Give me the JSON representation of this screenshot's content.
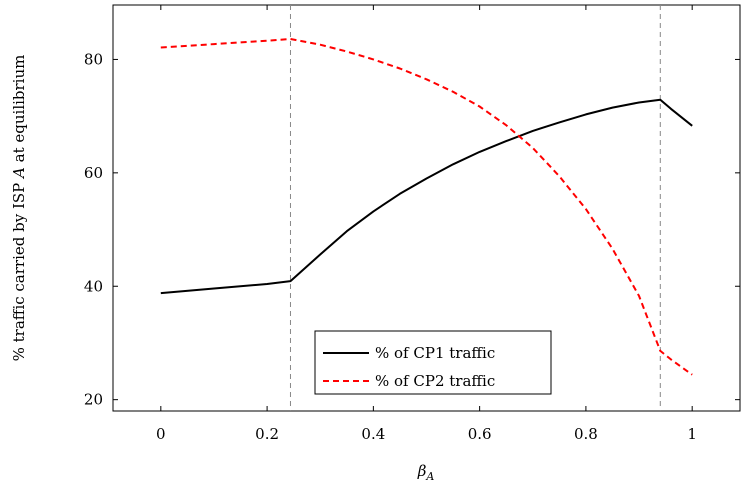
{
  "chart_data": {
    "type": "line",
    "xlabel": "β",
    "xlabel_subscript": "A",
    "ylabel_prefix": "% traffic carried by ISP ",
    "ylabel_italic": "A",
    "ylabel_suffix": " at equilibrium",
    "xlim": [
      -0.09,
      1.09
    ],
    "ylim": [
      18,
      89.6
    ],
    "x_ticks": [
      0,
      0.2,
      0.4,
      0.6,
      0.8,
      1
    ],
    "x_tick_labels": [
      "0",
      "0.2",
      "0.4",
      "0.6",
      "0.8",
      "1"
    ],
    "y_ticks": [
      20,
      40,
      60,
      80
    ],
    "y_tick_labels": [
      "20",
      "40",
      "60",
      "80"
    ],
    "vlines": [
      0.244,
      0.94
    ],
    "legend_position": "lower-right",
    "series": [
      {
        "name": "% of CP1 traffic",
        "color": "#000000",
        "dash": "solid",
        "points": [
          [
            0,
            38.8
          ],
          [
            0.1,
            39.6
          ],
          [
            0.2,
            40.4
          ],
          [
            0.244,
            40.9
          ],
          [
            0.3,
            45.6
          ],
          [
            0.35,
            49.7
          ],
          [
            0.4,
            53.2
          ],
          [
            0.45,
            56.3
          ],
          [
            0.5,
            59.0
          ],
          [
            0.55,
            61.5
          ],
          [
            0.6,
            63.7
          ],
          [
            0.65,
            65.6
          ],
          [
            0.7,
            67.4
          ],
          [
            0.75,
            68.9
          ],
          [
            0.8,
            70.3
          ],
          [
            0.85,
            71.5
          ],
          [
            0.9,
            72.4
          ],
          [
            0.94,
            72.9
          ],
          [
            0.96,
            71.3
          ],
          [
            1,
            68.3
          ]
        ]
      },
      {
        "name": "% of CP2 traffic",
        "color": "#ff0000",
        "dash": "dashed",
        "points": [
          [
            0,
            82.1
          ],
          [
            0.1,
            82.7
          ],
          [
            0.2,
            83.3
          ],
          [
            0.244,
            83.6
          ],
          [
            0.3,
            82.6
          ],
          [
            0.35,
            81.4
          ],
          [
            0.4,
            80.0
          ],
          [
            0.45,
            78.4
          ],
          [
            0.5,
            76.5
          ],
          [
            0.55,
            74.3
          ],
          [
            0.6,
            71.7
          ],
          [
            0.65,
            68.4
          ],
          [
            0.7,
            64.4
          ],
          [
            0.75,
            59.4
          ],
          [
            0.8,
            53.6
          ],
          [
            0.85,
            46.6
          ],
          [
            0.9,
            38.3
          ],
          [
            0.94,
            28.6
          ],
          [
            0.96,
            27.1
          ],
          [
            1,
            24.4
          ]
        ]
      }
    ]
  }
}
